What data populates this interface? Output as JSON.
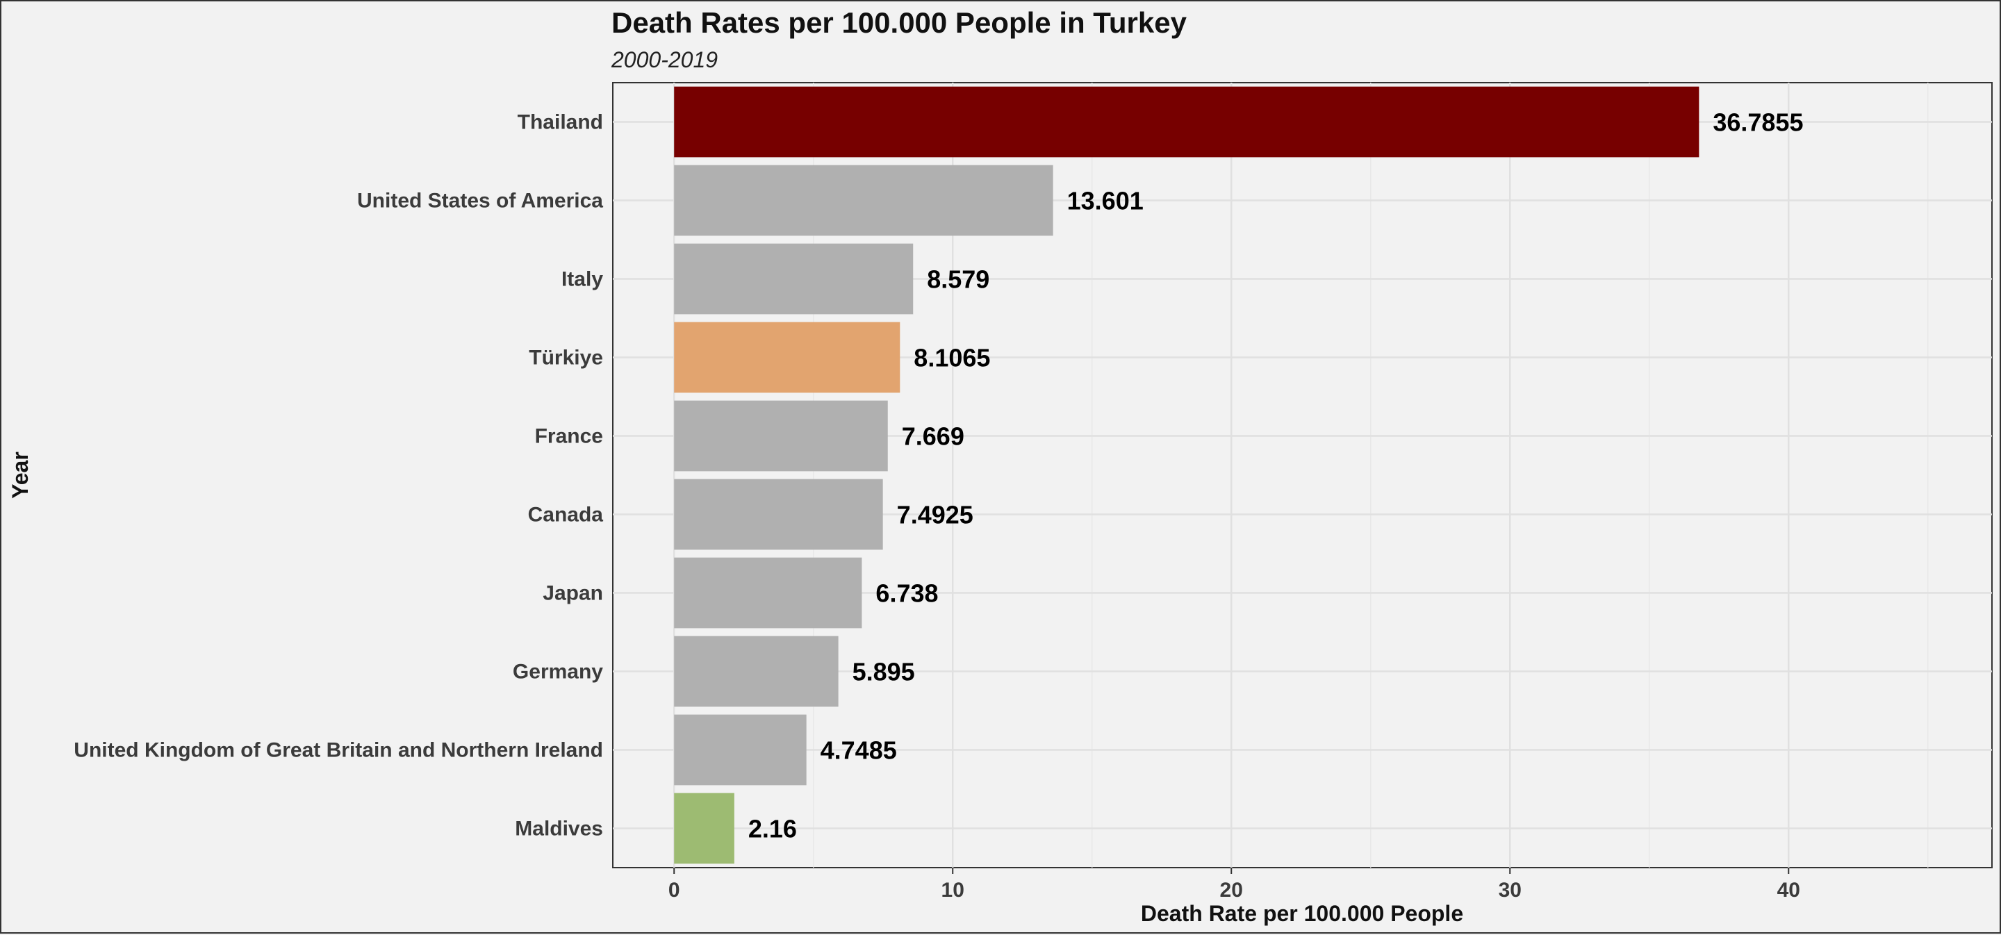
{
  "chart_data": {
    "type": "bar",
    "orientation": "horizontal",
    "title": "Death Rates per 100.000 People in Turkey",
    "subtitle": "2000-2019",
    "xlabel": "Death Rate per 100.000 People",
    "ylabel": "Year",
    "categories": [
      "Thailand",
      "United States of America",
      "Italy",
      "Türkiye",
      "France",
      "Canada",
      "Japan",
      "Germany",
      "United Kingdom of Great Britain and Northern Ireland",
      "Maldives"
    ],
    "values": [
      36.7855,
      13.601,
      8.579,
      8.1065,
      7.669,
      7.4925,
      6.738,
      5.895,
      4.7485,
      2.16
    ],
    "value_labels": [
      "36.7855",
      "13.601",
      "8.579",
      "8.1065",
      "7.669",
      "7.4925",
      "6.738",
      "5.895",
      "4.7485",
      "2.16"
    ],
    "bar_colors": [
      "#770000",
      "#b0b0b0",
      "#b0b0b0",
      "#e2a46f",
      "#b0b0b0",
      "#b0b0b0",
      "#b0b0b0",
      "#b0b0b0",
      "#b0b0b0",
      "#9dbb72"
    ],
    "xlim": [
      -2.2,
      47.3
    ],
    "xticks": [
      0,
      10,
      20,
      30,
      40
    ],
    "xtick_labels": [
      "0",
      "10",
      "20",
      "30",
      "40"
    ],
    "grid": true,
    "legend": "none"
  }
}
